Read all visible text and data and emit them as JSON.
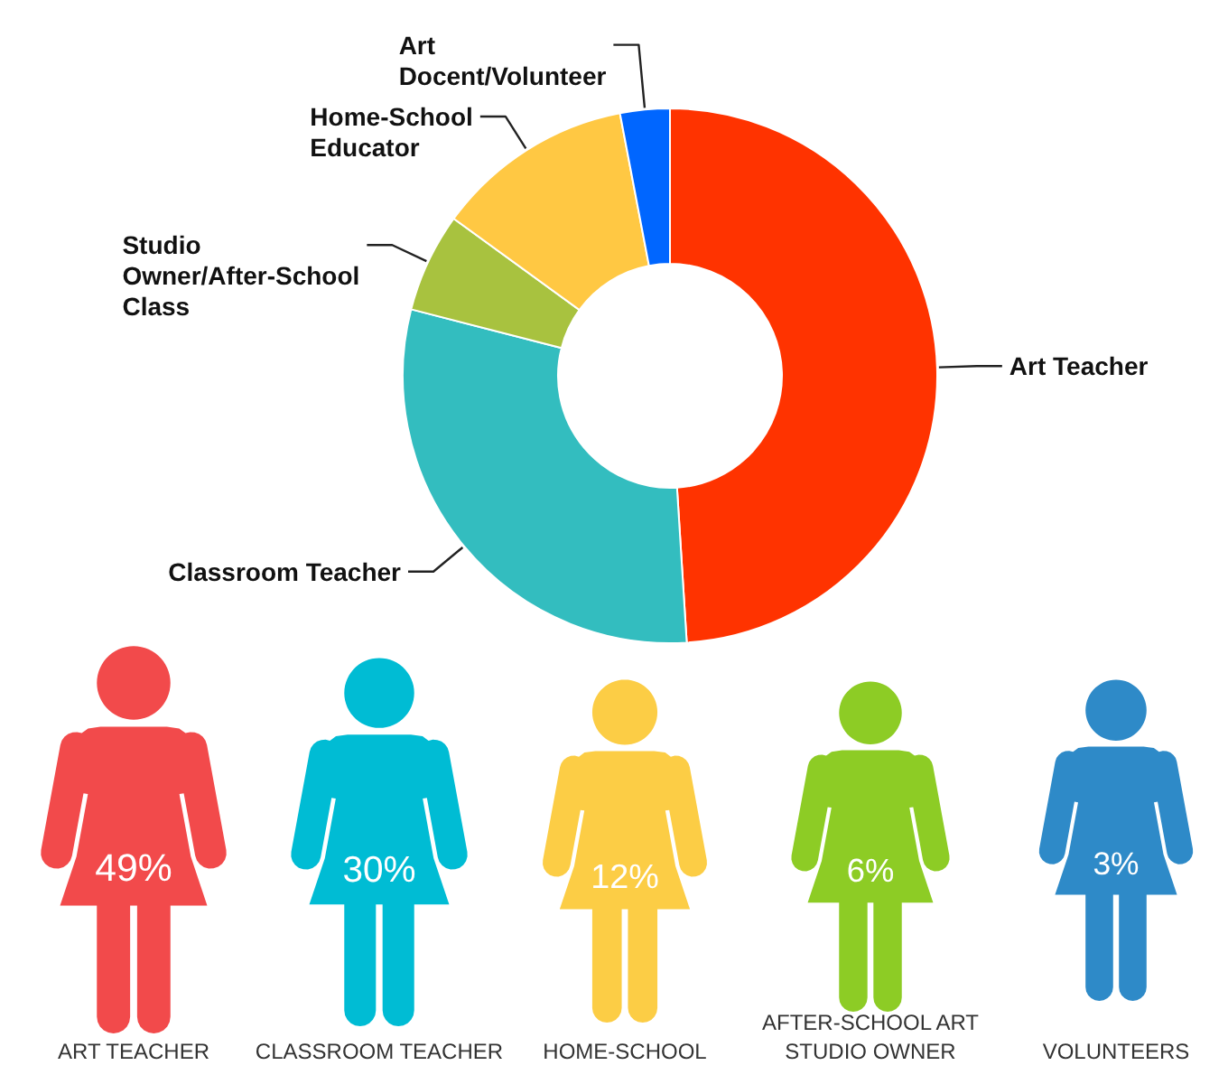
{
  "chart_data": [
    {
      "type": "donut",
      "categories": [
        "Art Teacher",
        "Classroom Teacher",
        "Studio Owner/After-School Class",
        "Home-School Educator",
        "Art Docent/Volunteer"
      ],
      "values": [
        49,
        30,
        6,
        12,
        3
      ],
      "colors": [
        "#ff3300",
        "#33bdbf",
        "#a8c23f",
        "#ffc843",
        "#0066ff"
      ]
    },
    {
      "type": "other",
      "categories": [
        "ART TEACHER",
        "CLASSROOM TEACHER",
        "HOME-SCHOOL",
        "AFTER-SCHOOL ART STUDIO OWNER",
        "VOLUNTEERS"
      ],
      "values": [
        49,
        30,
        12,
        6,
        3
      ],
      "value_labels": [
        "49%",
        "30%",
        "12%",
        "6%",
        "3%"
      ],
      "colors": [
        "#f24a4b",
        "#00bcd4",
        "#fccd45",
        "#8dcc25",
        "#2e8ac8"
      ]
    }
  ]
}
